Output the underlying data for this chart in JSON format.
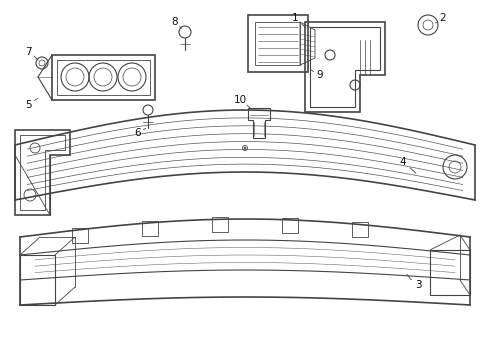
{
  "background_color": "#ffffff",
  "line_color": "#444444",
  "label_color": "#111111",
  "fig_width": 4.9,
  "fig_height": 3.6,
  "dpi": 100
}
